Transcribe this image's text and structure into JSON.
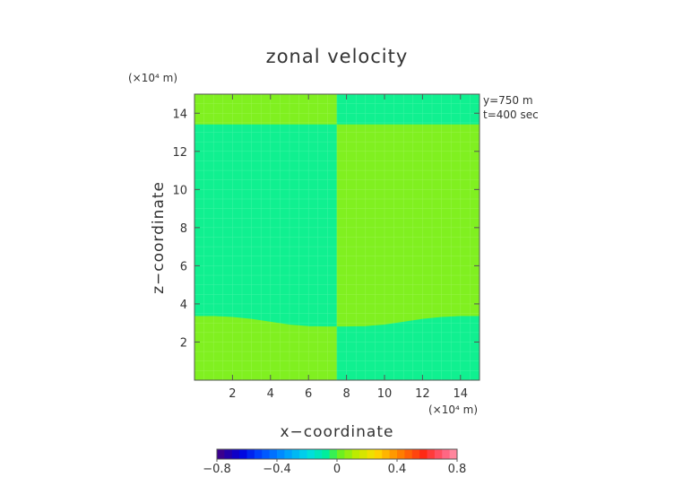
{
  "chart_data": {
    "type": "heatmap",
    "title": "zonal velocity",
    "xlabel": "x−coordinate",
    "ylabel": "z−coordinate",
    "x_unit": "(×10⁴ m)",
    "y_unit": "(×10⁴ m)",
    "xlim": [
      0,
      15
    ],
    "ylim": [
      0,
      15
    ],
    "x_ticks": [
      2,
      4,
      6,
      8,
      10,
      12,
      14
    ],
    "y_ticks": [
      2,
      4,
      6,
      8,
      10,
      12,
      14
    ],
    "annotations": [
      "y=750  m",
      "t=400  sec"
    ],
    "colorbar": {
      "min": -0.8,
      "max": 0.8,
      "tick_values": [
        -0.8,
        -0.4,
        0,
        0.4,
        0.8
      ],
      "tick_labels": [
        "−0.8",
        "−0.4",
        "0",
        "0.4",
        "0.8"
      ]
    },
    "regions": [
      {
        "name": "upper-left",
        "value": 0.15,
        "color": "#80f020",
        "x": [
          0,
          7.5
        ],
        "z_bottom": [
          13.4,
          13.4
        ],
        "z_top": [
          15,
          15
        ]
      },
      {
        "name": "upper-right",
        "value": 0.02,
        "color": "#10f090",
        "x": [
          7.5,
          15
        ],
        "z_bottom": [
          13.4,
          13.4
        ],
        "z_top": [
          15,
          15
        ]
      },
      {
        "name": "middle-left",
        "value": 0.02,
        "color": "#10f090",
        "x": [
          0,
          7.5
        ],
        "z_bottom": "interface",
        "z_top": [
          13.4,
          13.4
        ]
      },
      {
        "name": "middle-right",
        "value": 0.15,
        "color": "#80f020",
        "x": [
          7.5,
          15
        ],
        "z_bottom": "interface",
        "z_top": [
          13.4,
          13.4
        ]
      },
      {
        "name": "lower-left",
        "value": 0.15,
        "color": "#80f020",
        "x": [
          0,
          7.5
        ],
        "z_bottom": [
          0,
          0
        ],
        "z_top": "interface"
      },
      {
        "name": "lower-right",
        "value": 0.02,
        "color": "#10f090",
        "x": [
          7.5,
          15
        ],
        "z_bottom": [
          0,
          0
        ],
        "z_top": "interface"
      }
    ],
    "interface": {
      "x": [
        0,
        1,
        2,
        3,
        4,
        5,
        6,
        7,
        7.5,
        8,
        9,
        10,
        11,
        12,
        13,
        14,
        15
      ],
      "z": [
        3.35,
        3.35,
        3.3,
        3.2,
        3.05,
        2.9,
        2.82,
        2.8,
        2.8,
        2.8,
        2.82,
        2.9,
        3.05,
        3.2,
        3.3,
        3.35,
        3.35
      ]
    }
  }
}
